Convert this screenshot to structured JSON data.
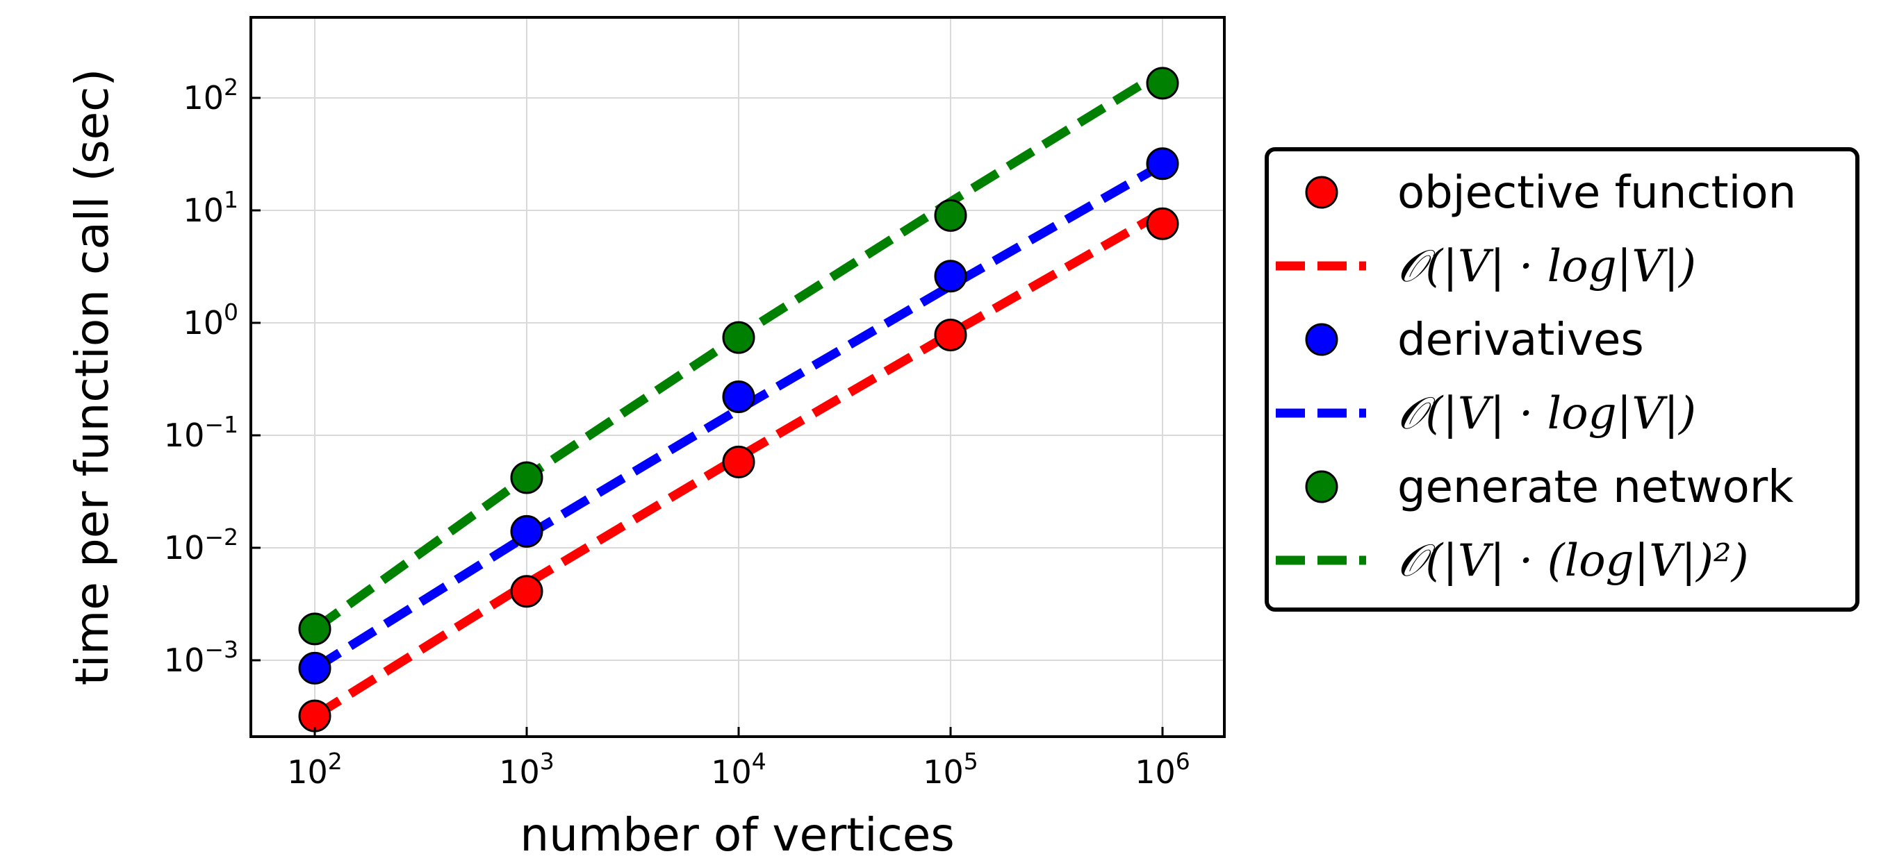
{
  "chart_data": {
    "type": "scatter",
    "xlabel": "number of vertices",
    "ylabel": "time per function call (sec)",
    "xscale": "log",
    "yscale": "log",
    "xlim": [
      50,
      2000000
    ],
    "ylim": [
      0.00015,
      500
    ],
    "grid": true,
    "legend_position": "outside right",
    "x_ticks": [
      {
        "value": 100,
        "base": "10",
        "exp": "2"
      },
      {
        "value": 1000,
        "base": "10",
        "exp": "3"
      },
      {
        "value": 10000,
        "base": "10",
        "exp": "4"
      },
      {
        "value": 100000,
        "base": "10",
        "exp": "5"
      },
      {
        "value": 1000000,
        "base": "10",
        "exp": "6"
      }
    ],
    "y_ticks": [
      {
        "value": 0.001,
        "base": "10",
        "exp": "−3"
      },
      {
        "value": 0.01,
        "base": "10",
        "exp": "−2"
      },
      {
        "value": 0.1,
        "base": "10",
        "exp": "−1"
      },
      {
        "value": 1,
        "base": "10",
        "exp": "0"
      },
      {
        "value": 10,
        "base": "10",
        "exp": "1"
      },
      {
        "value": 100,
        "base": "10",
        "exp": "2"
      }
    ],
    "series": [
      {
        "name": "objective function",
        "kind": "markers",
        "color": "#ff0000",
        "x": [
          100,
          1000,
          10000,
          100000,
          1000000
        ],
        "y": [
          0.00032,
          0.0041,
          0.058,
          0.78,
          7.6
        ]
      },
      {
        "name": "𝒪(|V| · log|V|)",
        "kind": "dashed-line",
        "color": "#ff0000",
        "x": [
          100,
          1000,
          10000,
          100000,
          1000000
        ],
        "y": [
          0.00032,
          0.0048,
          0.064,
          0.8,
          9.6
        ]
      },
      {
        "name": "derivatives",
        "kind": "markers",
        "color": "#0000ff",
        "x": [
          100,
          1000,
          10000,
          100000,
          1000000
        ],
        "y": [
          0.00085,
          0.014,
          0.22,
          2.6,
          26
        ]
      },
      {
        "name": "𝒪(|V| · log|V|)",
        "kind": "dashed-line",
        "color": "#0000ff",
        "x": [
          100,
          1000,
          10000,
          100000,
          1000000
        ],
        "y": [
          0.00085,
          0.0128,
          0.17,
          2.13,
          25.5
        ]
      },
      {
        "name": "generate network",
        "kind": "markers",
        "color": "#008000",
        "x": [
          100,
          1000,
          10000,
          100000,
          1000000
        ],
        "y": [
          0.0019,
          0.042,
          0.74,
          9.0,
          135
        ]
      },
      {
        "name": "𝒪(|V| · (log|V|)²)",
        "kind": "dashed-line",
        "color": "#008000",
        "x": [
          100,
          1000,
          10000,
          100000,
          1000000
        ],
        "y": [
          0.0019,
          0.0427,
          0.76,
          11.9,
          171
        ]
      }
    ]
  }
}
